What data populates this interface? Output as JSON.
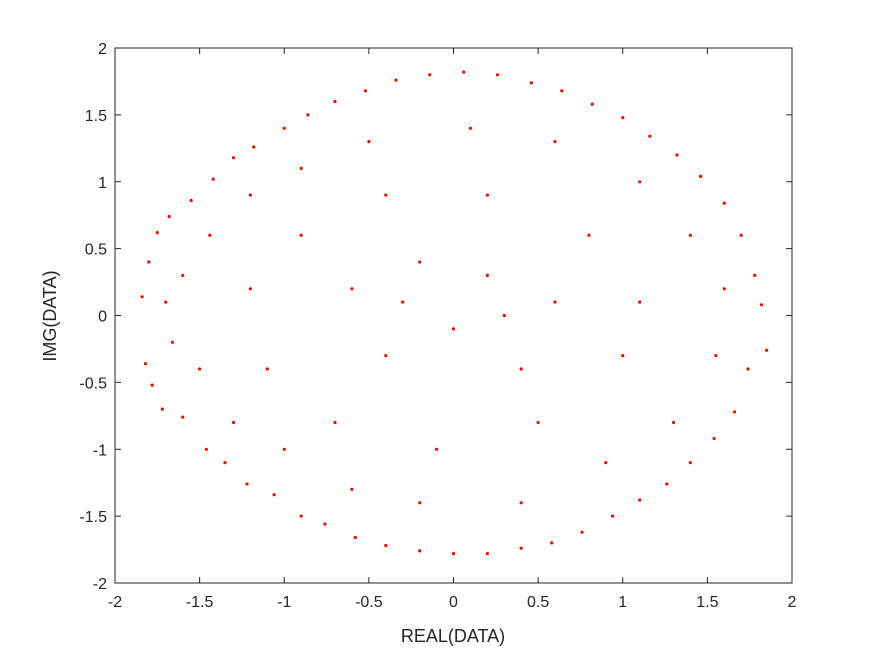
{
  "chart_data": {
    "type": "scatter",
    "title": "",
    "xlabel": "REAL(DATA)",
    "ylabel": "IMG(DATA)",
    "xlim": [
      -2,
      2
    ],
    "ylim": [
      -2,
      2
    ],
    "xticks": [
      -2,
      -1.5,
      -1,
      -0.5,
      0,
      0.5,
      1,
      1.5,
      2
    ],
    "yticks": [
      -2,
      -1.5,
      -1,
      -0.5,
      0,
      0.5,
      1,
      1.5,
      2
    ],
    "xtick_labels": [
      "-2",
      "-1.5",
      "-1",
      "-0.5",
      "0",
      "0.5",
      "1",
      "1.5",
      "2"
    ],
    "ytick_labels": [
      "-2",
      "-1.5",
      "-1",
      "-0.5",
      "0",
      "0.5",
      "1",
      "1.5",
      "2"
    ],
    "grid": false,
    "legend": false,
    "marker_color": "#ff0000",
    "series": [
      {
        "points": [
          [
            -1.84,
            0.14
          ],
          [
            -1.82,
            -0.36
          ],
          [
            -1.8,
            0.4
          ],
          [
            -1.78,
            -0.52
          ],
          [
            -1.75,
            0.62
          ],
          [
            -1.72,
            -0.7
          ],
          [
            -1.68,
            0.74
          ],
          [
            -1.6,
            -0.76
          ],
          [
            -1.55,
            0.86
          ],
          [
            -1.46,
            -1.0
          ],
          [
            -1.42,
            1.02
          ],
          [
            -1.35,
            -1.1
          ],
          [
            -1.3,
            1.18
          ],
          [
            -1.22,
            -1.26
          ],
          [
            -1.18,
            1.26
          ],
          [
            -1.06,
            -1.34
          ],
          [
            -1.0,
            1.4
          ],
          [
            -0.9,
            -1.5
          ],
          [
            -0.86,
            1.5
          ],
          [
            -0.76,
            -1.56
          ],
          [
            -0.7,
            1.6
          ],
          [
            -0.58,
            -1.66
          ],
          [
            -0.52,
            1.68
          ],
          [
            -0.4,
            -1.72
          ],
          [
            -0.34,
            1.76
          ],
          [
            -0.2,
            -1.76
          ],
          [
            -0.14,
            1.8
          ],
          [
            0.0,
            -1.78
          ],
          [
            0.06,
            1.82
          ],
          [
            0.2,
            -1.78
          ],
          [
            0.26,
            1.8
          ],
          [
            0.4,
            -1.74
          ],
          [
            0.46,
            1.74
          ],
          [
            0.58,
            -1.7
          ],
          [
            0.64,
            1.68
          ],
          [
            0.76,
            -1.62
          ],
          [
            0.82,
            1.58
          ],
          [
            0.94,
            -1.5
          ],
          [
            1.0,
            1.48
          ],
          [
            1.1,
            -1.38
          ],
          [
            1.16,
            1.34
          ],
          [
            1.26,
            -1.26
          ],
          [
            1.32,
            1.2
          ],
          [
            1.4,
            -1.1
          ],
          [
            1.46,
            1.04
          ],
          [
            1.54,
            -0.92
          ],
          [
            1.6,
            0.84
          ],
          [
            1.66,
            -0.72
          ],
          [
            1.7,
            0.6
          ],
          [
            1.74,
            -0.4
          ],
          [
            1.78,
            0.3
          ],
          [
            1.82,
            0.08
          ],
          [
            1.85,
            -0.26
          ],
          [
            -1.7,
            0.1
          ],
          [
            -1.66,
            -0.2
          ],
          [
            -1.6,
            0.3
          ],
          [
            -1.5,
            -0.4
          ],
          [
            -1.44,
            0.6
          ],
          [
            -1.3,
            -0.8
          ],
          [
            -1.2,
            0.9
          ],
          [
            -1.0,
            -1.0
          ],
          [
            -0.9,
            1.1
          ],
          [
            -0.6,
            -1.3
          ],
          [
            -0.5,
            1.3
          ],
          [
            -0.2,
            -1.4
          ],
          [
            0.1,
            1.4
          ],
          [
            0.4,
            -1.4
          ],
          [
            0.6,
            1.3
          ],
          [
            0.9,
            -1.1
          ],
          [
            1.1,
            1.0
          ],
          [
            1.3,
            -0.8
          ],
          [
            1.4,
            0.6
          ],
          [
            1.55,
            -0.3
          ],
          [
            1.6,
            0.2
          ],
          [
            -1.2,
            0.2
          ],
          [
            -1.1,
            -0.4
          ],
          [
            -0.9,
            0.6
          ],
          [
            -0.7,
            -0.8
          ],
          [
            -0.4,
            0.9
          ],
          [
            -0.1,
            -1.0
          ],
          [
            0.2,
            0.9
          ],
          [
            0.5,
            -0.8
          ],
          [
            0.8,
            0.6
          ],
          [
            1.0,
            -0.3
          ],
          [
            1.1,
            0.1
          ],
          [
            -0.6,
            0.2
          ],
          [
            -0.4,
            -0.3
          ],
          [
            -0.2,
            0.4
          ],
          [
            0.0,
            -0.1
          ],
          [
            0.2,
            0.3
          ],
          [
            0.4,
            -0.4
          ],
          [
            0.6,
            0.1
          ],
          [
            0.3,
            0.0
          ],
          [
            -0.3,
            0.1
          ]
        ]
      }
    ]
  }
}
